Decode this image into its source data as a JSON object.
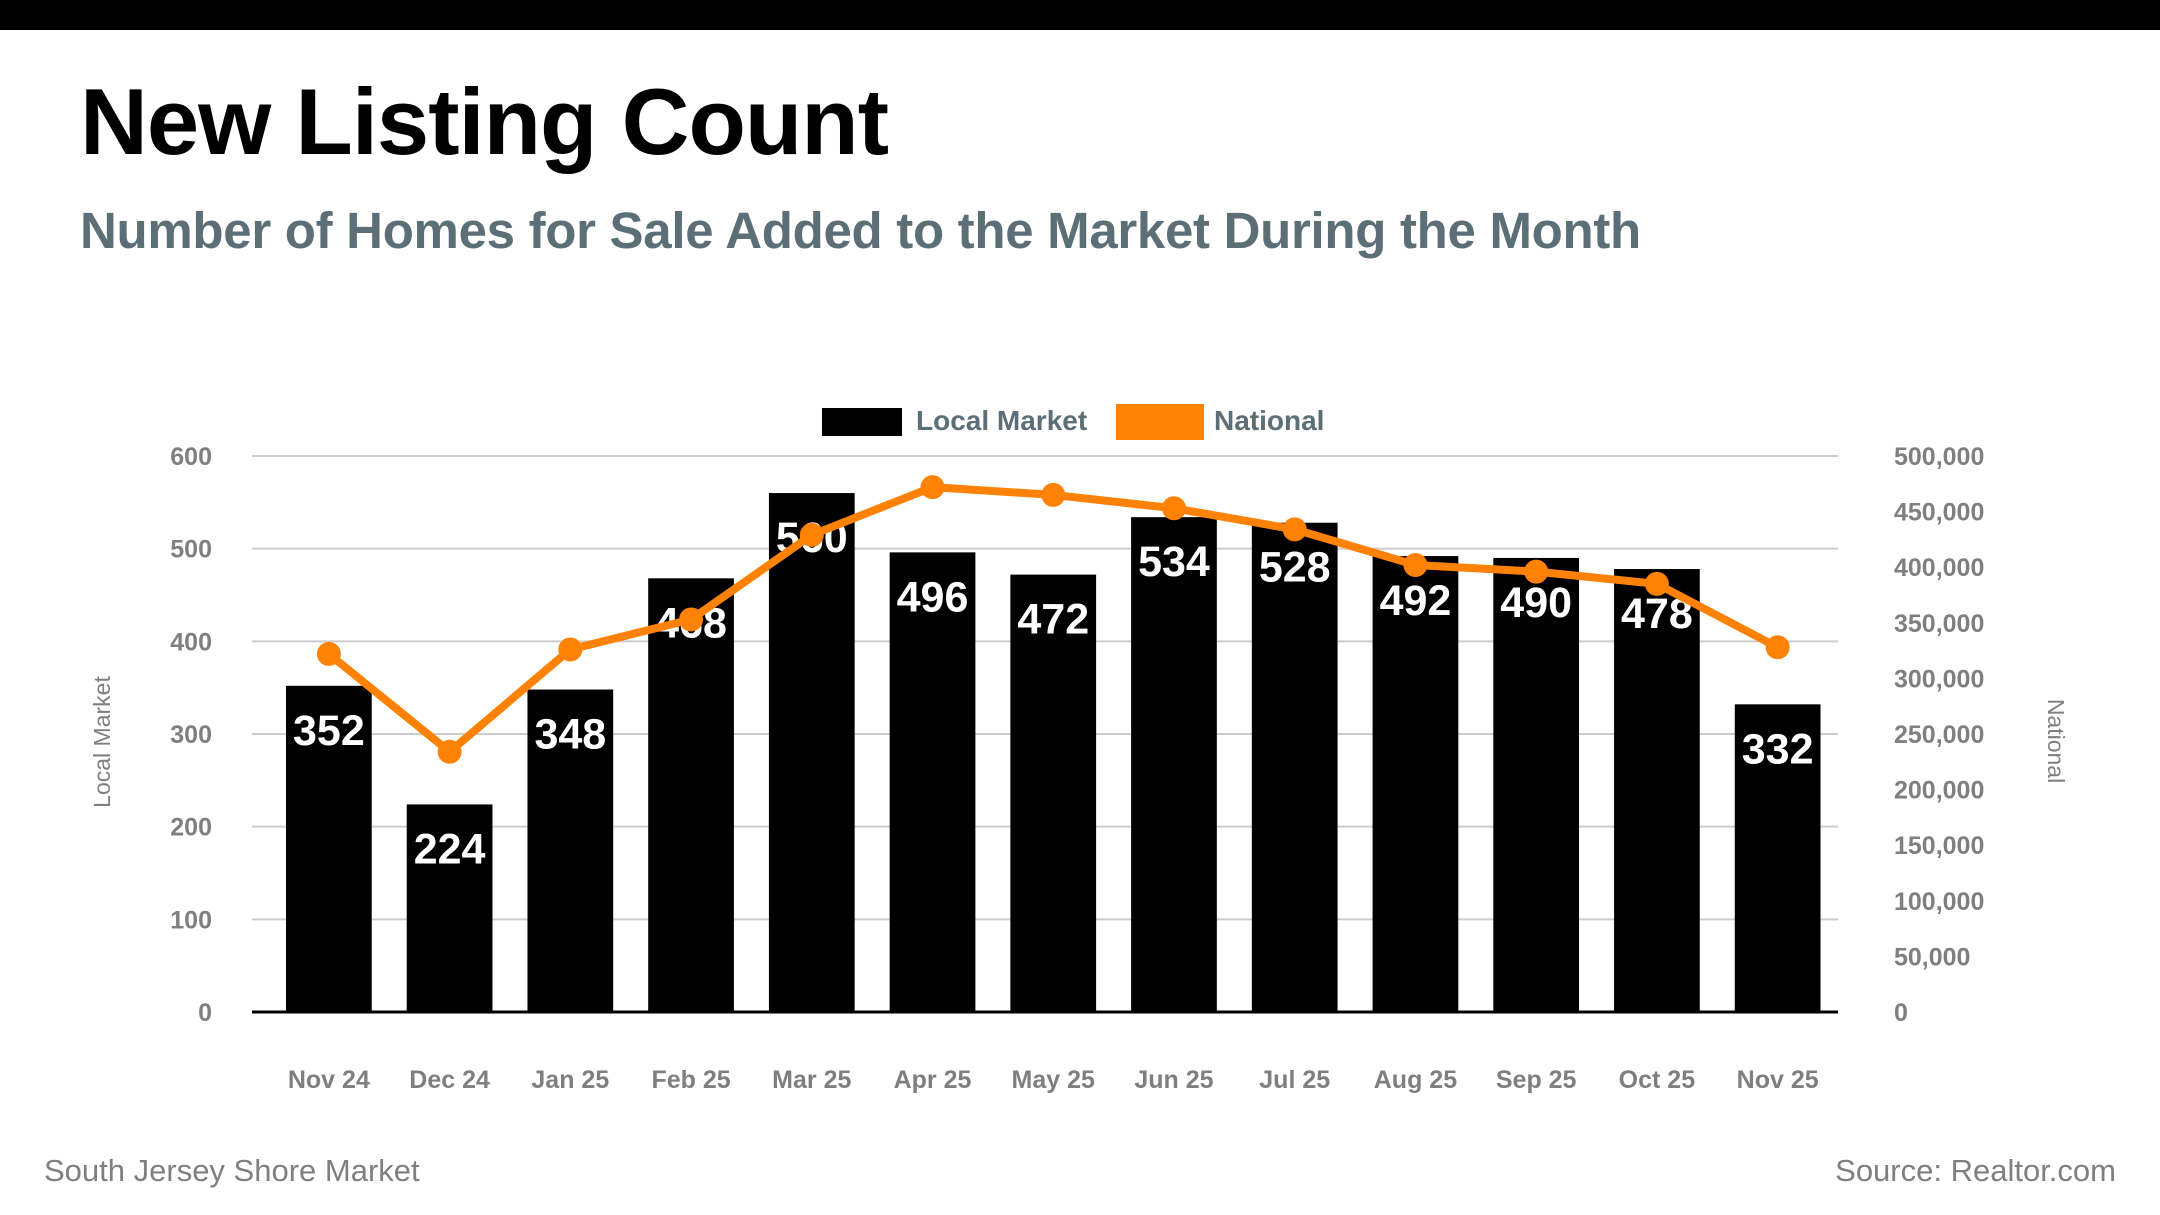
{
  "header": {
    "title": "New Listing Count",
    "subtitle": "Number of Homes for Sale Added to the Market During the Month"
  },
  "footer": {
    "market": "South Jersey Shore Market",
    "source": "Source: Realtor.com"
  },
  "colors": {
    "local_bar": "#000000",
    "national_line": "#ff8205",
    "gridline": "#cccccc",
    "subtitle": "#5c6e76",
    "axis_text": "#7f7f7f"
  },
  "chart_data": {
    "type": "bar",
    "title": "New Listing Count",
    "subtitle": "Number of Homes for Sale Added to the Market During the Month",
    "categories": [
      "Nov 24",
      "Dec 24",
      "Jan 25",
      "Feb 25",
      "Mar 25",
      "Apr 25",
      "May 25",
      "Jun 25",
      "Jul 25",
      "Aug 25",
      "Sep 25",
      "Oct 25",
      "Nov 25"
    ],
    "series": [
      {
        "name": "Local Market",
        "type": "bar",
        "axis": "left",
        "values": [
          352,
          224,
          348,
          468,
          560,
          496,
          472,
          534,
          528,
          492,
          490,
          478,
          332
        ],
        "data_labels": [
          "352",
          "224",
          "348",
          "468",
          "560",
          "496",
          "472",
          "534",
          "528",
          "492",
          "490",
          "478",
          "332"
        ]
      },
      {
        "name": "National",
        "type": "line",
        "axis": "right",
        "values": [
          322000,
          234000,
          326000,
          353000,
          429000,
          472000,
          465000,
          453000,
          434000,
          402000,
          396000,
          385000,
          328000
        ]
      }
    ],
    "ylabel": "Local Market",
    "y2label": "National",
    "xlabel": "",
    "ylim": [
      0,
      600
    ],
    "y2lim": [
      0,
      500000
    ],
    "yticks": [
      "0",
      "100",
      "200",
      "300",
      "400",
      "500",
      "600"
    ],
    "y2ticks": [
      "0",
      "50,000",
      "100,000",
      "150,000",
      "200,000",
      "250,000",
      "300,000",
      "350,000",
      "400,000",
      "450,000",
      "500,000"
    ],
    "legend": {
      "position": "top-center",
      "entries": [
        "Local Market",
        "National"
      ]
    },
    "grid": true
  }
}
